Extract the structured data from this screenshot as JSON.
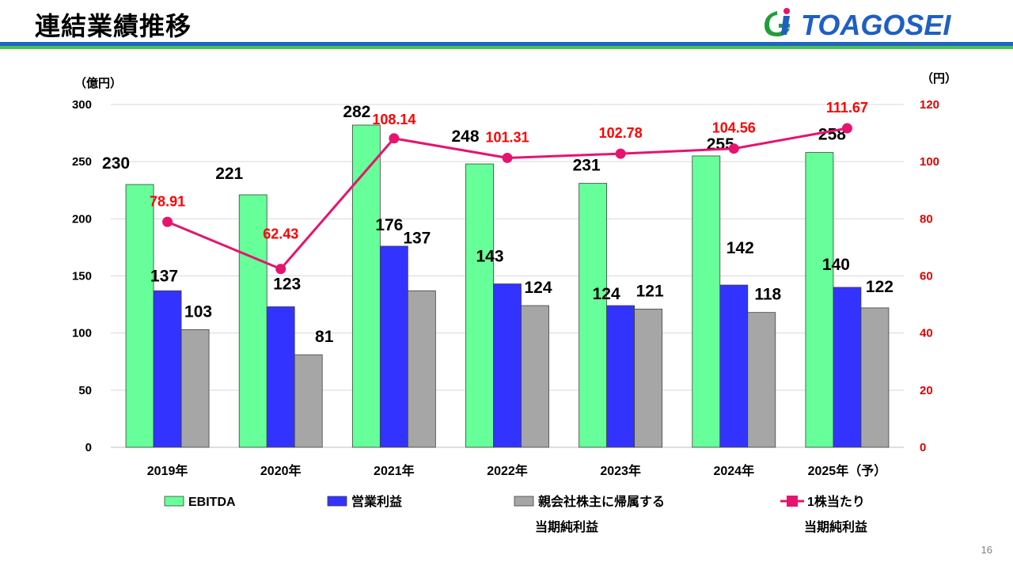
{
  "title": "連結業績推移",
  "logo": {
    "text": "TOAGOSEI",
    "mark_letter": "G"
  },
  "page_number": "16",
  "colors": {
    "ebitda": "#66ff99",
    "operating_profit": "#3333ff",
    "net_income": "#a6a6a6",
    "eps": "#e6146e",
    "eps_label": "#ff0000",
    "header_blue": "#1f63c6",
    "header_green": "#49c24b"
  },
  "chart_data": {
    "type": "bar",
    "categories": [
      "2019年",
      "2020年",
      "2021年",
      "2022年",
      "2023年",
      "2024年",
      "2025年（予）"
    ],
    "y_unit_left": "（億円）",
    "y_unit_right": "（円）",
    "ylim": [
      0,
      300
    ],
    "y2lim": [
      0,
      120
    ],
    "y_ticks": [
      "0",
      "50",
      "100",
      "150",
      "200",
      "250",
      "300"
    ],
    "y2_ticks": [
      "0",
      "20",
      "40",
      "60",
      "80",
      "100",
      "120"
    ],
    "grid": true,
    "legend_position": "bottom",
    "series": [
      {
        "name": "EBITDA",
        "type": "bar",
        "axis": "left",
        "values": [
          230,
          221,
          282,
          248,
          231,
          255,
          258
        ],
        "labels": [
          "230",
          "221",
          "282",
          "248",
          "231",
          "255",
          "258"
        ]
      },
      {
        "name": "営業利益",
        "type": "bar",
        "axis": "left",
        "values": [
          137,
          123,
          176,
          143,
          124,
          142,
          140
        ],
        "labels": [
          "137",
          "123",
          "176",
          "143",
          "124",
          "142",
          "140"
        ]
      },
      {
        "name": "親会社株主に帰属する当期純利益",
        "legend_lines": [
          "親会社株主に帰属する",
          "当期純利益"
        ],
        "type": "bar",
        "axis": "left",
        "values": [
          103,
          81,
          137,
          124,
          121,
          118,
          122
        ],
        "labels": [
          "103",
          "81",
          "137",
          "124",
          "121",
          "118",
          "122"
        ]
      },
      {
        "name": "1株当たり当期純利益",
        "legend_lines": [
          "1株当たり",
          "当期純利益"
        ],
        "type": "line",
        "axis": "right",
        "values": [
          78.91,
          62.43,
          108.14,
          101.31,
          102.78,
          104.56,
          111.67
        ],
        "labels": [
          "78.91",
          "62.43",
          "108.14",
          "101.31",
          "102.78",
          "104.56",
          "111.67"
        ]
      }
    ]
  }
}
